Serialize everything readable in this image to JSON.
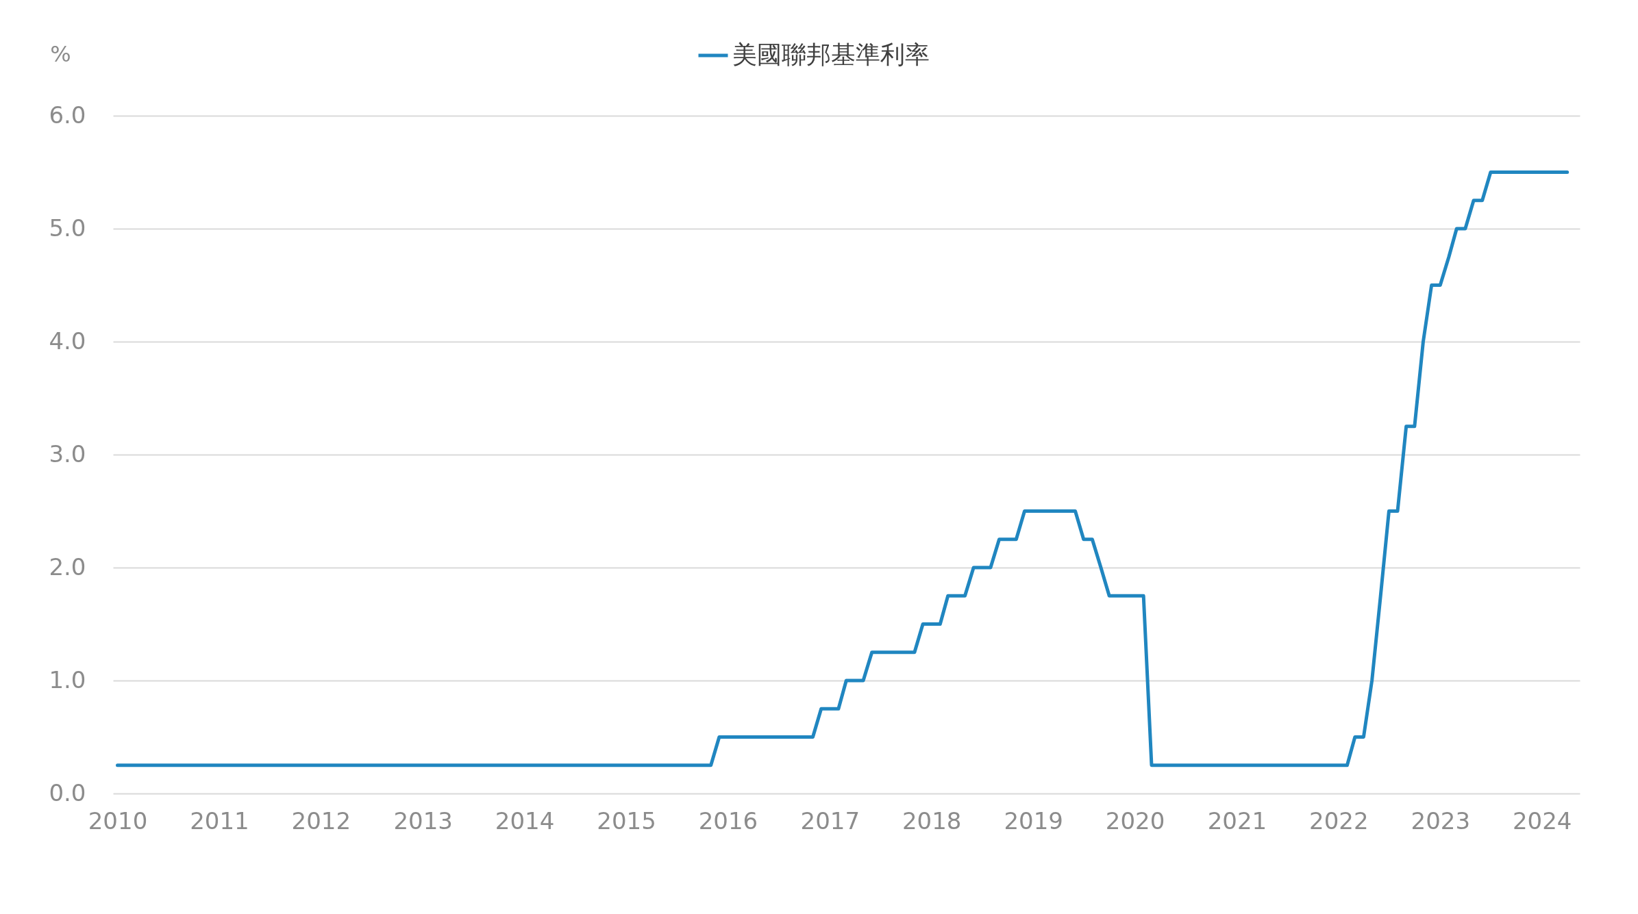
{
  "chart_data": {
    "type": "line",
    "ylabel": "%",
    "legend": "top",
    "grid": "y",
    "xlim": [
      "2009-12-16",
      "2024-05-16"
    ],
    "xticks": [
      "2010",
      "2011",
      "2012",
      "2013",
      "2014",
      "2015",
      "2016",
      "2017",
      "2018",
      "2019",
      "2020",
      "2021",
      "2022",
      "2023",
      "2024"
    ],
    "ylim": [
      0,
      6
    ],
    "yticks": [
      {
        "value": 0,
        "label": "0.0"
      },
      {
        "value": 1,
        "label": "1.0"
      },
      {
        "value": 2,
        "label": "2.0"
      },
      {
        "value": 3,
        "label": "3.0"
      },
      {
        "value": 4,
        "label": "4.0"
      },
      {
        "value": 5,
        "label": "5.0"
      },
      {
        "value": 6,
        "label": "6.0"
      }
    ],
    "series": [
      {
        "name": "美國聯邦基準利率",
        "color": "#2086c0",
        "x": [
          "2010-01",
          "2015-11",
          "2015-12",
          "2016-11",
          "2016-12",
          "2017-02",
          "2017-03",
          "2017-05",
          "2017-06",
          "2017-11",
          "2017-12",
          "2018-02",
          "2018-03",
          "2018-05",
          "2018-06",
          "2018-08",
          "2018-09",
          "2018-11",
          "2018-12",
          "2019-06",
          "2019-07",
          "2019-08",
          "2019-09",
          "2019-10",
          "2020-02",
          "2020-03",
          "2022-02",
          "2022-03",
          "2022-04",
          "2022-05",
          "2022-06",
          "2022-07",
          "2022-08",
          "2022-09",
          "2022-10",
          "2022-11",
          "2022-12",
          "2023-01",
          "2023-02",
          "2023-03",
          "2023-04",
          "2023-05",
          "2023-06",
          "2023-07",
          "2024-04"
        ],
        "values": [
          0.25,
          0.25,
          0.5,
          0.5,
          0.75,
          0.75,
          1.0,
          1.0,
          1.25,
          1.25,
          1.5,
          1.5,
          1.75,
          1.75,
          2.0,
          2.0,
          2.25,
          2.25,
          2.5,
          2.5,
          2.25,
          2.25,
          2.0,
          1.75,
          1.75,
          0.25,
          0.25,
          0.5,
          0.5,
          1.0,
          1.75,
          2.5,
          2.5,
          3.25,
          3.25,
          4.0,
          4.5,
          4.5,
          4.75,
          5.0,
          5.0,
          5.25,
          5.25,
          5.5,
          5.5
        ]
      }
    ]
  }
}
